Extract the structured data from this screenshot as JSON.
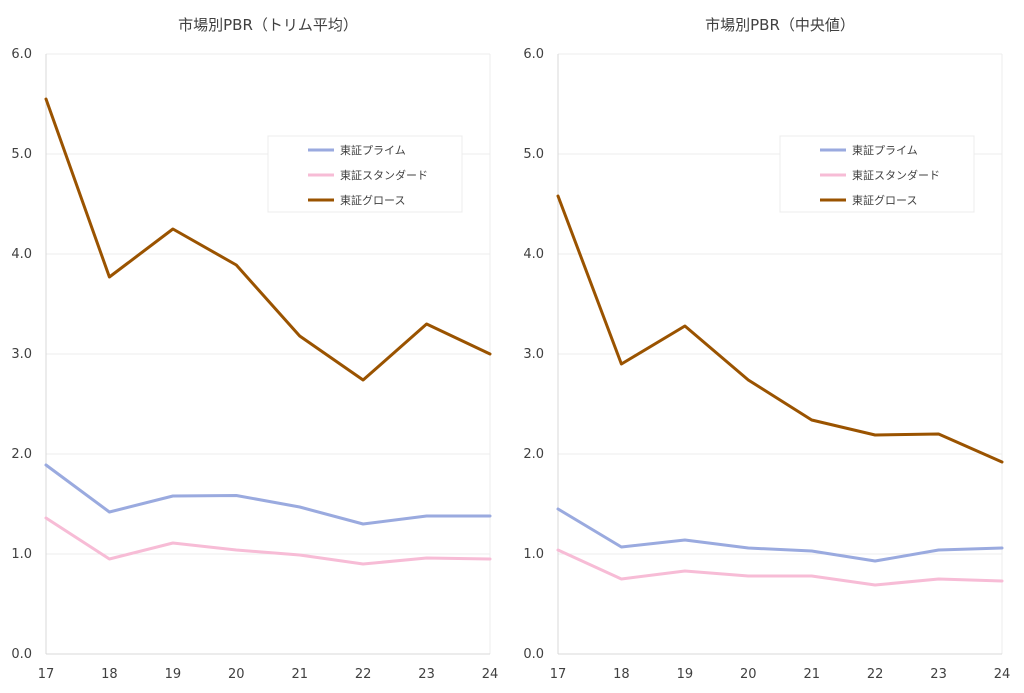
{
  "chart_data": [
    {
      "type": "line",
      "title": "市場別PBR（トリム平均）",
      "categories": [
        "17",
        "18",
        "19",
        "20",
        "21",
        "22",
        "23",
        "24"
      ],
      "ylim": [
        0,
        6
      ],
      "yticks": [
        "0.0",
        "1.0",
        "2.0",
        "3.0",
        "4.0",
        "5.0",
        "6.0"
      ],
      "grid": true,
      "legend_position": "top-right",
      "series": [
        {
          "name": "東証プライム",
          "color": "#9aaadf",
          "values": [
            1.89,
            1.42,
            1.58,
            1.585,
            1.47,
            1.3,
            1.38,
            1.38
          ]
        },
        {
          "name": "東証スタンダード",
          "color": "#f7bcd6",
          "values": [
            1.36,
            0.95,
            1.11,
            1.04,
            0.99,
            0.9,
            0.96,
            0.95
          ]
        },
        {
          "name": "東証グロース",
          "color": "#9a5300",
          "values": [
            5.55,
            3.77,
            4.25,
            3.89,
            3.18,
            2.74,
            3.3,
            3.0
          ]
        }
      ]
    },
    {
      "type": "line",
      "title": "市場別PBR（中央値）",
      "categories": [
        "17",
        "18",
        "19",
        "20",
        "21",
        "22",
        "23",
        "24"
      ],
      "ylim": [
        0,
        6
      ],
      "yticks": [
        "0.0",
        "1.0",
        "2.0",
        "3.0",
        "4.0",
        "5.0",
        "6.0"
      ],
      "grid": true,
      "legend_position": "top-right",
      "series": [
        {
          "name": "東証プライム",
          "color": "#9aaadf",
          "values": [
            1.45,
            1.07,
            1.14,
            1.06,
            1.03,
            0.93,
            1.04,
            1.06
          ]
        },
        {
          "name": "東証スタンダード",
          "color": "#f7bcd6",
          "values": [
            1.04,
            0.75,
            0.83,
            0.78,
            0.78,
            0.69,
            0.75,
            0.73
          ]
        },
        {
          "name": "東証グロース",
          "color": "#9a5300",
          "values": [
            4.58,
            2.9,
            3.28,
            2.74,
            2.34,
            2.19,
            2.2,
            1.92
          ]
        }
      ]
    }
  ]
}
